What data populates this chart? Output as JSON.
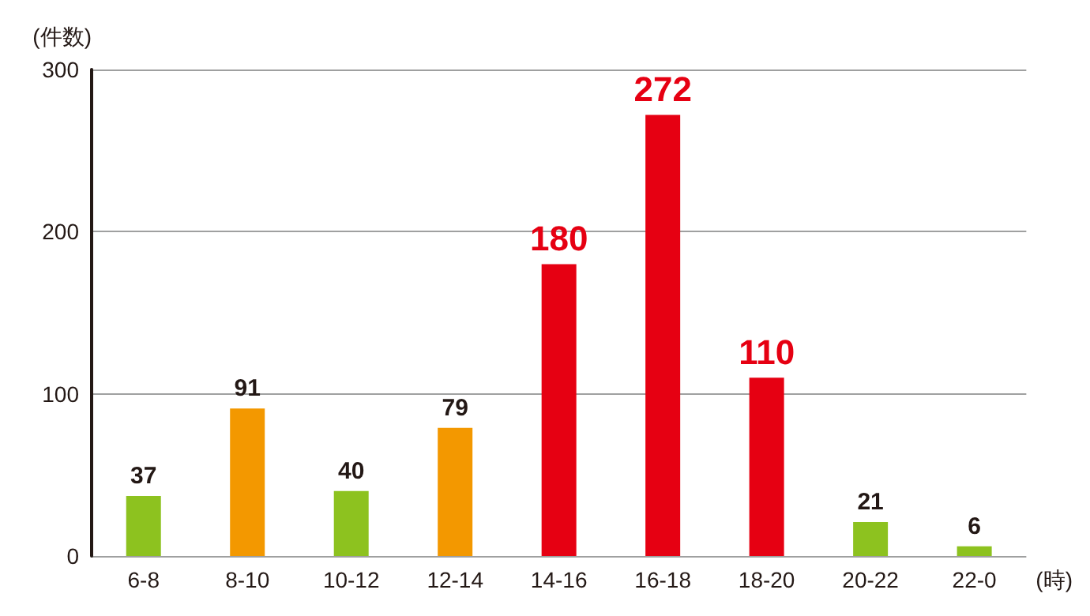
{
  "chart_data": {
    "type": "bar",
    "ylabel": "(件数)",
    "xlabel": "(時)",
    "categories": [
      "6-8",
      "8-10",
      "10-12",
      "12-14",
      "14-16",
      "16-18",
      "18-20",
      "20-22",
      "22-0"
    ],
    "values": [
      37,
      91,
      40,
      79,
      180,
      272,
      110,
      21,
      6
    ],
    "colors": [
      "#8dc21f",
      "#f39800",
      "#8dc21f",
      "#f39800",
      "#e60012",
      "#e60012",
      "#e60012",
      "#8dc21f",
      "#8dc21f"
    ],
    "ylim": [
      0,
      300
    ],
    "yticks": [
      0,
      100,
      200,
      300
    ],
    "grid": "y",
    "data_labels": true
  }
}
